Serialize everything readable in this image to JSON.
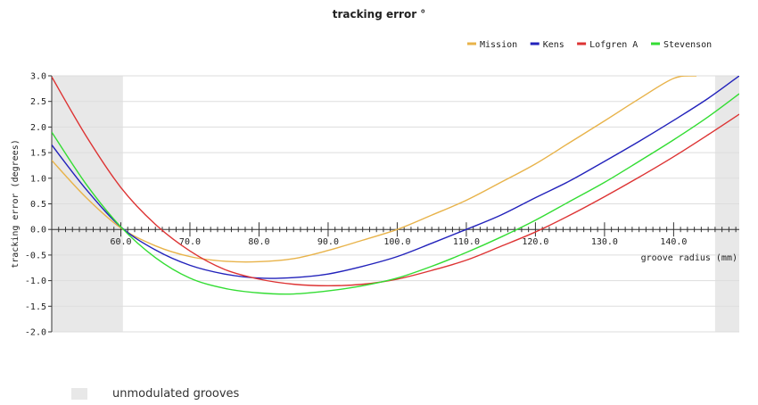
{
  "chart_data": {
    "type": "line",
    "title": "tracking error °",
    "xlabel": "groove radius (mm)",
    "ylabel": "tracking error (degrees)",
    "xlim": [
      50.0,
      149.5
    ],
    "ylim": [
      -2.0,
      3.0
    ],
    "x_ticks": [
      "60.0",
      "70.0",
      "80.0",
      "90.0",
      "100.0",
      "110.0",
      "120.0",
      "130.0",
      "140.0"
    ],
    "y_ticks": [
      "3.0",
      "2.5",
      "2.0",
      "1.5",
      "1.0",
      "0.5",
      "0.0",
      "-0.5",
      "-1.0",
      "-1.5",
      "-2.0"
    ],
    "grid": true,
    "legend_position": "top-right",
    "shaded_regions": [
      {
        "x_from": 50.0,
        "x_to": 60.3
      },
      {
        "x_from": 146.0,
        "x_to": 149.5
      }
    ],
    "series": [
      {
        "name": "Mission",
        "color": "#e8b34a",
        "x": [
          50.0,
          55.0,
          60.0,
          65.0,
          70.0,
          75.0,
          80.0,
          85.0,
          90.0,
          95.0,
          100.0,
          105.0,
          110.0,
          115.0,
          120.0,
          125.0,
          130.0,
          135.0,
          140.0,
          143.3
        ],
        "y": [
          1.35,
          0.62,
          0.03,
          -0.32,
          -0.53,
          -0.62,
          -0.63,
          -0.57,
          -0.41,
          -0.21,
          0.0,
          0.28,
          0.57,
          0.92,
          1.28,
          1.7,
          2.12,
          2.55,
          2.95,
          3.0
        ]
      },
      {
        "name": "Kens",
        "color": "#2222bb",
        "x": [
          50.0,
          55.0,
          60.0,
          65.0,
          70.0,
          75.0,
          80.0,
          85.0,
          90.0,
          95.0,
          100.0,
          105.0,
          110.0,
          115.0,
          120.0,
          125.0,
          130.0,
          135.0,
          140.0,
          145.0,
          149.5
        ],
        "y": [
          1.65,
          0.78,
          0.05,
          -0.4,
          -0.7,
          -0.87,
          -0.95,
          -0.94,
          -0.87,
          -0.72,
          -0.53,
          -0.27,
          0.0,
          0.28,
          0.62,
          0.95,
          1.33,
          1.72,
          2.13,
          2.56,
          3.0
        ]
      },
      {
        "name": "Lofgren A",
        "color": "#dd3333",
        "x": [
          50.0,
          55.0,
          60.0,
          65.0,
          70.0,
          75.0,
          80.0,
          85.0,
          90.0,
          95.0,
          100.0,
          105.0,
          110.0,
          115.0,
          120.0,
          125.0,
          130.0,
          135.0,
          140.0,
          145.0,
          149.5
        ],
        "y": [
          2.98,
          1.82,
          0.82,
          0.1,
          -0.42,
          -0.78,
          -0.97,
          -1.07,
          -1.1,
          -1.07,
          -0.97,
          -0.8,
          -0.6,
          -0.33,
          -0.05,
          0.28,
          0.64,
          1.02,
          1.42,
          1.85,
          2.25
        ]
      },
      {
        "name": "Stevenson",
        "color": "#33dd33",
        "x": [
          50.0,
          55.0,
          60.0,
          65.0,
          70.0,
          75.0,
          80.0,
          85.0,
          90.0,
          95.0,
          100.0,
          105.0,
          110.0,
          115.0,
          120.0,
          125.0,
          130.0,
          135.0,
          140.0,
          145.0,
          149.5
        ],
        "y": [
          1.9,
          0.88,
          0.05,
          -0.55,
          -0.95,
          -1.15,
          -1.24,
          -1.26,
          -1.2,
          -1.1,
          -0.95,
          -0.72,
          -0.45,
          -0.15,
          0.18,
          0.55,
          0.92,
          1.33,
          1.75,
          2.2,
          2.65
        ]
      }
    ]
  },
  "footer": {
    "shaded_label": "unmodulated grooves"
  }
}
